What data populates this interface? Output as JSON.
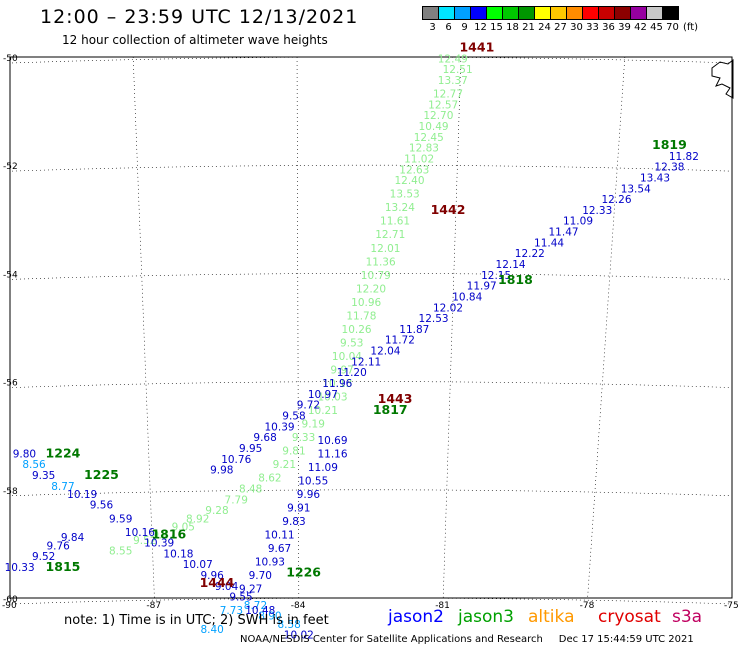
{
  "header": {
    "title": "12:00 – 23:59 UTC 12/13/2021",
    "subtitle": "12 hour collection of altimeter wave heights"
  },
  "color_scale": {
    "colors": [
      "#808080",
      "#00e5ff",
      "#00a0ff",
      "#0000ff",
      "#00ff00",
      "#00c800",
      "#009600",
      "#ffff00",
      "#ffc800",
      "#ff8c00",
      "#ff0000",
      "#c80000",
      "#8c0000",
      "#9600a0",
      "#c8c8c8",
      "#000000"
    ],
    "labels": [
      "3",
      "6",
      "9",
      "12",
      "15",
      "18",
      "21",
      "24",
      "27",
      "30",
      "33",
      "36",
      "39",
      "42",
      "45",
      "70"
    ],
    "unit": "(ft)"
  },
  "axes": {
    "lat_labels": [
      "-50",
      "-52",
      "-54",
      "-56",
      "-58",
      "-60"
    ],
    "lon_labels": [
      "-90",
      "-87",
      "-84",
      "-81",
      "-78",
      "-75"
    ]
  },
  "tracks": [
    {
      "sat": "jason3",
      "time": "1441",
      "color": "#90ee90",
      "points": [
        [
          -80.8,
          -50.1,
          "12.49"
        ],
        [
          -80.7,
          -50.3,
          "12.51"
        ],
        [
          -80.8,
          -50.5,
          "13.37"
        ],
        [
          -80.9,
          -50.75,
          "12.77"
        ],
        [
          -81.0,
          -50.95,
          "12.57"
        ],
        [
          -81.1,
          -51.15,
          "12.70"
        ],
        [
          -81.2,
          -51.35,
          "10.49"
        ],
        [
          -81.3,
          -51.55,
          "12.45"
        ],
        [
          -81.4,
          -51.75,
          "12.83"
        ],
        [
          -81.5,
          -51.95,
          "11.02"
        ],
        [
          -81.6,
          -52.15,
          "12.63"
        ],
        [
          -81.7,
          -52.35,
          "12.40"
        ],
        [
          -81.8,
          -52.6,
          "13.53"
        ],
        [
          -81.9,
          -52.85,
          "13.24"
        ],
        [
          -82.0,
          -53.1,
          "11.61"
        ],
        [
          -82.1,
          -53.35,
          "12.71"
        ],
        [
          -82.2,
          -53.6,
          "12.01"
        ],
        [
          -82.3,
          -53.85,
          "11.36"
        ],
        [
          -82.4,
          -54.1,
          "10.79"
        ],
        [
          -82.5,
          -54.35,
          "12.20"
        ],
        [
          -82.6,
          -54.6,
          "10.96"
        ],
        [
          -82.7,
          -54.85,
          "11.78"
        ],
        [
          -82.8,
          -55.1,
          "10.26"
        ],
        [
          -82.9,
          -55.35,
          "9.53"
        ],
        [
          -83.0,
          -55.6,
          "10.04"
        ],
        [
          -83.1,
          -55.85,
          "9.97"
        ],
        [
          -83.2,
          -56.1,
          "10.13"
        ],
        [
          -83.3,
          -56.35,
          "10.03"
        ],
        [
          -83.5,
          -56.6,
          "10.21"
        ],
        [
          -83.7,
          -56.85,
          "9.19"
        ],
        [
          -83.9,
          -57.1,
          "9.33"
        ],
        [
          -84.1,
          -57.35,
          "9.81"
        ],
        [
          -84.3,
          -57.6,
          "9.21"
        ],
        [
          -84.6,
          -57.85,
          "8.62"
        ],
        [
          -85.0,
          -58.05,
          "8.48"
        ],
        [
          -85.3,
          -58.25,
          "7.79"
        ],
        [
          -85.7,
          -58.45,
          "9.28"
        ],
        [
          -86.1,
          -58.6,
          "8.92"
        ],
        [
          -86.4,
          -58.75,
          "9.05"
        ],
        [
          -86.8,
          -58.9,
          "9.47"
        ],
        [
          -87.2,
          -59.0,
          "9.52"
        ],
        [
          -87.7,
          -59.2,
          "8.55"
        ]
      ]
    },
    {
      "sat": "jason2",
      "time": "1442",
      "color": "#0000c8",
      "points": [
        [
          -76.0,
          -51.9,
          "11.82"
        ],
        [
          -76.3,
          -52.1,
          "12.38"
        ],
        [
          -76.6,
          -52.3,
          "13.43"
        ],
        [
          -77.0,
          -52.5,
          "13.54"
        ],
        [
          -77.4,
          -52.7,
          "12.26"
        ],
        [
          -77.8,
          -52.9,
          "12.33"
        ],
        [
          -78.2,
          -53.1,
          "11.09"
        ],
        [
          -78.5,
          -53.3,
          "11.47"
        ],
        [
          -78.8,
          -53.5,
          "11.44"
        ],
        [
          -79.2,
          -53.7,
          "12.22"
        ],
        [
          -79.6,
          -53.9,
          "12.14"
        ],
        [
          -79.9,
          -54.1,
          "12.15"
        ],
        [
          -80.2,
          -54.3,
          "11.97"
        ],
        [
          -80.5,
          -54.5,
          "10.84"
        ],
        [
          -80.9,
          -54.7,
          "12.02"
        ],
        [
          -81.2,
          -54.9,
          "12.53"
        ],
        [
          -81.6,
          -55.1,
          "11.87"
        ],
        [
          -81.9,
          -55.3,
          "11.72"
        ],
        [
          -82.2,
          -55.5,
          "12.04"
        ],
        [
          -82.6,
          -55.7,
          "12.11"
        ],
        [
          -82.9,
          -55.9,
          "11.20"
        ],
        [
          -83.2,
          -56.1,
          "11.96"
        ],
        [
          -83.5,
          -56.3,
          "10.97"
        ],
        [
          -83.8,
          -56.5,
          "9.72"
        ],
        [
          -84.1,
          -56.7,
          "9.58"
        ],
        [
          -84.4,
          -56.9,
          "10.39"
        ],
        [
          -84.7,
          -57.1,
          "9.68"
        ],
        [
          -85.0,
          -57.3,
          "9.95"
        ],
        [
          -85.3,
          -57.5,
          "10.76"
        ],
        [
          -85.6,
          -57.7,
          "9.98"
        ]
      ]
    }
  ],
  "track_labels": [
    {
      "text": "1441",
      "lon": -80.3,
      "lat": -49.9,
      "color": "#800000"
    },
    {
      "text": "1442",
      "lon": -80.9,
      "lat": -52.9,
      "color": "#800000"
    },
    {
      "text": "1443",
      "lon": -82.0,
      "lat": -56.4,
      "color": "#800000"
    },
    {
      "text": "1444",
      "lon": -85.7,
      "lat": -59.8,
      "color": "#800000"
    },
    {
      "text": "1819",
      "lon": -76.3,
      "lat": -51.7,
      "color": "#007800"
    },
    {
      "text": "1818",
      "lon": -79.5,
      "lat": -54.2,
      "color": "#007800"
    },
    {
      "text": "1817",
      "lon": -82.1,
      "lat": -56.6,
      "color": "#007800"
    },
    {
      "text": "1816",
      "lon": -86.7,
      "lat": -58.9,
      "color": "#007800"
    },
    {
      "text": "1815",
      "lon": -88.9,
      "lat": -59.5,
      "color": "#007800"
    },
    {
      "text": "1224",
      "lon": -88.9,
      "lat": -57.4,
      "color": "#007800"
    },
    {
      "text": "1225",
      "lon": -88.1,
      "lat": -57.8,
      "color": "#007800"
    },
    {
      "text": "1226",
      "lon": -83.9,
      "lat": -59.6,
      "color": "#007800"
    }
  ],
  "extra_values": [
    {
      "text": "9.80",
      "lon": -89.7,
      "lat": -57.4,
      "color": "#0000c8"
    },
    {
      "text": "8.56",
      "lon": -89.5,
      "lat": -57.6,
      "color": "#00a0ff"
    },
    {
      "text": "9.35",
      "lon": -89.3,
      "lat": -57.8,
      "color": "#0000c8"
    },
    {
      "text": "8.77",
      "lon": -88.9,
      "lat": -58.0,
      "color": "#00a0ff"
    },
    {
      "text": "10.19",
      "lon": -88.5,
      "lat": -58.15,
      "color": "#0000c8"
    },
    {
      "text": "9.56",
      "lon": -88.1,
      "lat": -58.35,
      "color": "#0000c8"
    },
    {
      "text": "9.59",
      "lon": -87.7,
      "lat": -58.6,
      "color": "#0000c8"
    },
    {
      "text": "10.16",
      "lon": -87.3,
      "lat": -58.85,
      "color": "#0000c8"
    },
    {
      "text": "10.39",
      "lon": -86.9,
      "lat": -59.05,
      "color": "#0000c8"
    },
    {
      "text": "10.18",
      "lon": -86.5,
      "lat": -59.25,
      "color": "#0000c8"
    },
    {
      "text": "10.07",
      "lon": -86.1,
      "lat": -59.45,
      "color": "#0000c8"
    },
    {
      "text": "9.96",
      "lon": -85.8,
      "lat": -59.65,
      "color": "#0000c8"
    },
    {
      "text": "9.04",
      "lon": -85.5,
      "lat": -59.85,
      "color": "#0000c8"
    },
    {
      "text": "9.55",
      "lon": -85.2,
      "lat": -60.05,
      "color": "#0000c8"
    },
    {
      "text": "8.72",
      "lon": -84.9,
      "lat": -60.2,
      "color": "#00a0ff"
    },
    {
      "text": "8.90",
      "lon": -84.6,
      "lat": -60.4,
      "color": "#00a0ff"
    },
    {
      "text": "7.73",
      "lon": -85.4,
      "lat": -60.3,
      "color": "#00a0ff"
    },
    {
      "text": "8.40",
      "lon": -85.8,
      "lat": -60.65,
      "color": "#00a0ff"
    },
    {
      "text": "9.52",
      "lon": -89.3,
      "lat": -59.3,
      "color": "#0000c8"
    },
    {
      "text": "9.76",
      "lon": -89.0,
      "lat": -59.1,
      "color": "#0000c8"
    },
    {
      "text": "9.84",
      "lon": -88.7,
      "lat": -58.95,
      "color": "#0000c8"
    },
    {
      "text": "10.33",
      "lon": -89.8,
      "lat": -59.5,
      "color": "#0000c8"
    },
    {
      "text": "10.48",
      "lon": -84.8,
      "lat": -60.3,
      "color": "#0000c8"
    },
    {
      "text": "8.58",
      "lon": -84.2,
      "lat": -60.55,
      "color": "#00a0ff"
    },
    {
      "text": "10.02",
      "lon": -84.0,
      "lat": -60.75,
      "color": "#0000c8"
    },
    {
      "text": "9.27",
      "lon": -85.0,
      "lat": -59.9,
      "color": "#0000c8"
    },
    {
      "text": "9.70",
      "lon": -84.8,
      "lat": -59.65,
      "color": "#0000c8"
    },
    {
      "text": "10.93",
      "lon": -84.6,
      "lat": -59.4,
      "color": "#0000c8"
    },
    {
      "text": "9.67",
      "lon": -84.4,
      "lat": -59.15,
      "color": "#0000c8"
    },
    {
      "text": "10.11",
      "lon": -84.4,
      "lat": -58.9,
      "color": "#0000c8"
    },
    {
      "text": "9.83",
      "lon": -84.1,
      "lat": -58.65,
      "color": "#0000c8"
    },
    {
      "text": "9.91",
      "lon": -84.0,
      "lat": -58.4,
      "color": "#0000c8"
    },
    {
      "text": "9.96",
      "lon": -83.8,
      "lat": -58.15,
      "color": "#0000c8"
    },
    {
      "text": "10.55",
      "lon": -83.7,
      "lat": -57.9,
      "color": "#0000c8"
    },
    {
      "text": "11.09",
      "lon": -83.5,
      "lat": -57.65,
      "color": "#0000c8"
    },
    {
      "text": "11.16",
      "lon": -83.3,
      "lat": -57.4,
      "color": "#0000c8"
    },
    {
      "text": "10.69",
      "lon": -83.3,
      "lat": -57.15,
      "color": "#0000c8"
    }
  ],
  "footer": {
    "note": "note:  1) Time is in UTC;  2) SWH is in feet",
    "credit": "NOAA/NESDIS Center for Satellite Applications and Research     Dec 17 15:44:59 UTC 2021",
    "satellites": [
      {
        "name": "jason2",
        "color": "#0000ff"
      },
      {
        "name": "jason3",
        "color": "#00a000"
      },
      {
        "name": "altika",
        "color": "#ff9900"
      },
      {
        "name": "cryosat",
        "color": "#e00000"
      },
      {
        "name": "s3a",
        "color": "#c00060"
      }
    ]
  }
}
